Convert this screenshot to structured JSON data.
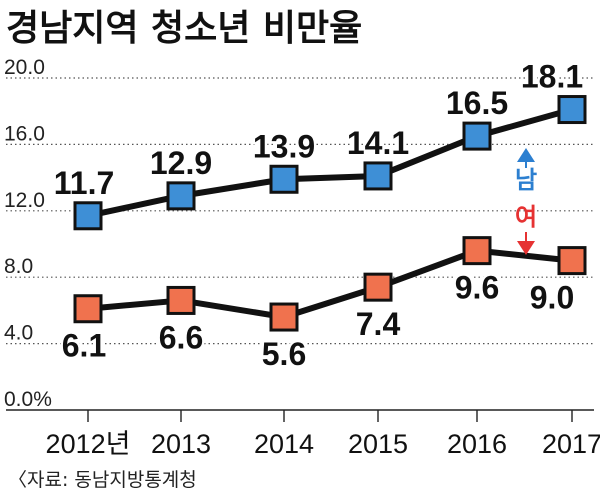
{
  "chart_data": {
    "type": "line",
    "title": "경남지역 청소년 비만율",
    "source": "〈자료: 동남지방통계청",
    "categories": [
      "2012년",
      "2013",
      "2014",
      "2015",
      "2016",
      "2017"
    ],
    "x": [
      2012,
      2013,
      2014,
      2015,
      2016,
      2017
    ],
    "yticks": [
      "0.0%",
      "4.0",
      "8.0",
      "12.0",
      "16.0",
      "20.0"
    ],
    "ylim": [
      0,
      20
    ],
    "grid": true,
    "series": [
      {
        "name": "남",
        "color": "#3e8fd6",
        "label_position": "above",
        "values": [
          11.7,
          12.9,
          13.9,
          14.1,
          16.5,
          18.1
        ],
        "labels": [
          "11.7",
          "12.9",
          "13.9",
          "14.1",
          "16.5",
          "18.1"
        ]
      },
      {
        "name": "여",
        "color": "#f0724e",
        "label_position": "below",
        "values": [
          6.1,
          6.6,
          5.6,
          7.4,
          9.6,
          9.0
        ],
        "labels": [
          "6.1",
          "6.6",
          "5.6",
          "7.4",
          "9.6",
          "9.0"
        ]
      }
    ],
    "gap_annotation": {
      "top_color": "#2c7fd0",
      "bottom_color": "#e63232"
    }
  }
}
